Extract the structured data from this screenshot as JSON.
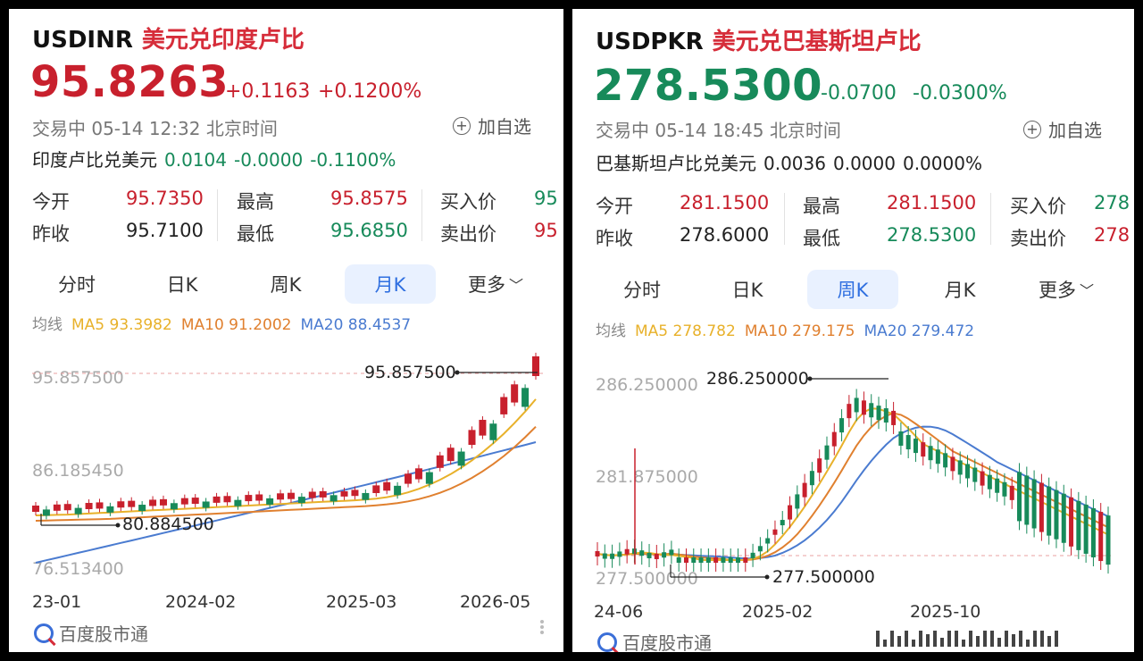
{
  "left": {
    "symbol": "USDINR",
    "name": "美元兑印度卢比",
    "price": "95.8263",
    "change": "+0.1163",
    "change_pct": "+0.1200%",
    "status": "交易中 05-14 12:32 北京时间",
    "add_label": "加自选",
    "reverse": {
      "label": "印度卢比兑美元",
      "price": "0.0104",
      "change": "-0.0000",
      "pct": "-0.1100%"
    },
    "stats": {
      "open_label": "今开",
      "open": "95.7350",
      "prev_label": "昨收",
      "prev": "95.7100",
      "high_label": "最高",
      "high": "95.8575",
      "low_label": "最低",
      "low": "95.6850",
      "bid_label": "买入价",
      "bid": "95",
      "ask_label": "卖出价",
      "ask": "95"
    },
    "tabs": [
      "分时",
      "日K",
      "周K",
      "月K",
      "更多"
    ],
    "active_tab": 3,
    "ma": {
      "label": "均线",
      "ma5": "MA5 93.3982",
      "ma10": "MA10 91.2002",
      "ma20": "MA20 88.4537"
    },
    "chart": {
      "y_labels": [
        "95.857500",
        "86.185450",
        "76.513400"
      ],
      "x_labels": [
        "23-01",
        "2024-02",
        "2025-03",
        "2026-05"
      ],
      "max_annotation": "95.857500",
      "min_annotation": "80.884500"
    },
    "brand": "百度股市通"
  },
  "right": {
    "symbol": "USDPKR",
    "name_a": "美元兑",
    "name_b": "巴基斯坦卢比",
    "price": "278.5300",
    "change": "-0.0700",
    "change_pct": "-0.0300%",
    "status": "交易中 05-14 18:45 北京时间",
    "add_label": "加自选",
    "reverse": {
      "label": "巴基斯坦卢比兑美元",
      "price": "0.0036",
      "change": "0.0000",
      "pct": "0.0000%"
    },
    "stats": {
      "open_label": "今开",
      "open": "281.1500",
      "prev_label": "昨收",
      "prev": "278.6000",
      "high_label": "最高",
      "high": "281.1500",
      "low_label": "最低",
      "low": "278.5300",
      "bid_label": "买入价",
      "bid": "278",
      "ask_label": "卖出价",
      "ask": "278"
    },
    "tabs": [
      "分时",
      "日K",
      "周K",
      "月K",
      "更多"
    ],
    "active_tab": 2,
    "ma": {
      "label": "均线",
      "ma5": "MA5 278.782",
      "ma10": "MA10 279.175",
      "ma20": "MA20 279.472"
    },
    "chart": {
      "y_labels": [
        "286.250000",
        "281.875000",
        "277.500000"
      ],
      "x_labels": [
        "24-06",
        "2025-02",
        "2025-10"
      ],
      "max_annotation": "286.250000",
      "min_annotation": "277.500000"
    },
    "brand": "百度股市通"
  },
  "colors": {
    "up": "#c8202d",
    "down": "#178a5a",
    "ma5": "#e8b12a",
    "ma10": "#e0802f",
    "ma20": "#4a7bd0",
    "active_tab": "#2f6fe0"
  }
}
